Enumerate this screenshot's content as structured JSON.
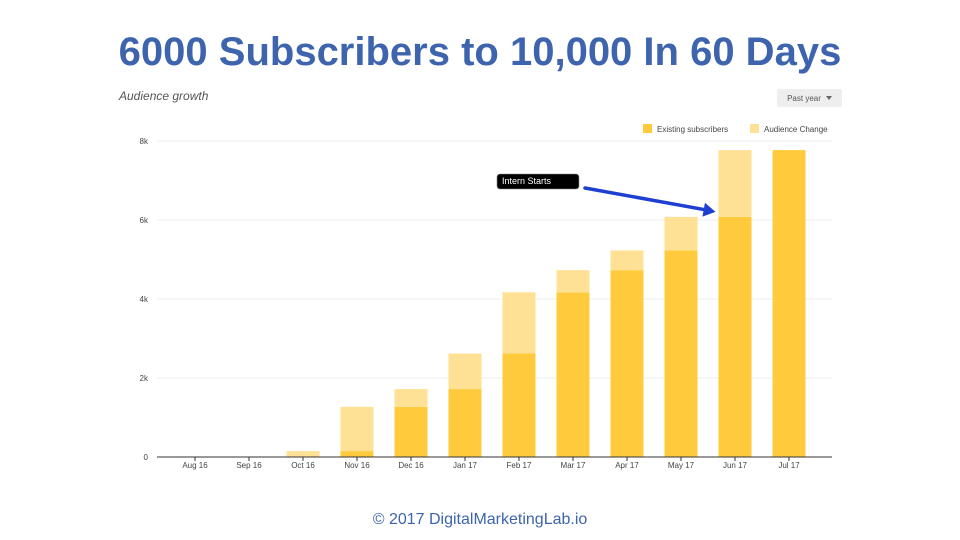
{
  "header": {
    "title": "6000 Subscribers to 10,000 In 60 Days"
  },
  "panel": {
    "title": "Audience growth",
    "range_label": "Past year"
  },
  "footer": {
    "text": "© 2017 DigitalMarketingLab.io"
  },
  "colors": {
    "title": "#3d64ad",
    "existing": "#ffcb3d",
    "change": "#ffe196",
    "arrow": "#1f3fd1"
  },
  "annotation": {
    "text": "Intern Starts",
    "target_category": "Jun 17"
  },
  "chart_data": {
    "type": "bar",
    "stacked": true,
    "categories": [
      "Aug 16",
      "Sep 16",
      "Oct 16",
      "Nov 16",
      "Dec 16",
      "Jan 17",
      "Feb 17",
      "Mar 17",
      "Apr 17",
      "May 17",
      "Jun 17",
      "Jul 17"
    ],
    "series": [
      {
        "name": "Existing subscribers",
        "values": [
          0,
          0,
          0,
          150,
          1270,
          1720,
          2620,
          4170,
          4730,
          5230,
          6080,
          7770
        ]
      },
      {
        "name": "Audience Change",
        "values": [
          0,
          0,
          150,
          1120,
          450,
          900,
          1550,
          560,
          500,
          850,
          1690,
          0
        ]
      }
    ],
    "yticks": [
      "0",
      "2k",
      "4k",
      "6k",
      "8k"
    ],
    "ytick_values": [
      0,
      2000,
      4000,
      6000,
      8000
    ],
    "ylim": [
      0,
      8000
    ],
    "grid": true,
    "legend_position": "top-right"
  }
}
